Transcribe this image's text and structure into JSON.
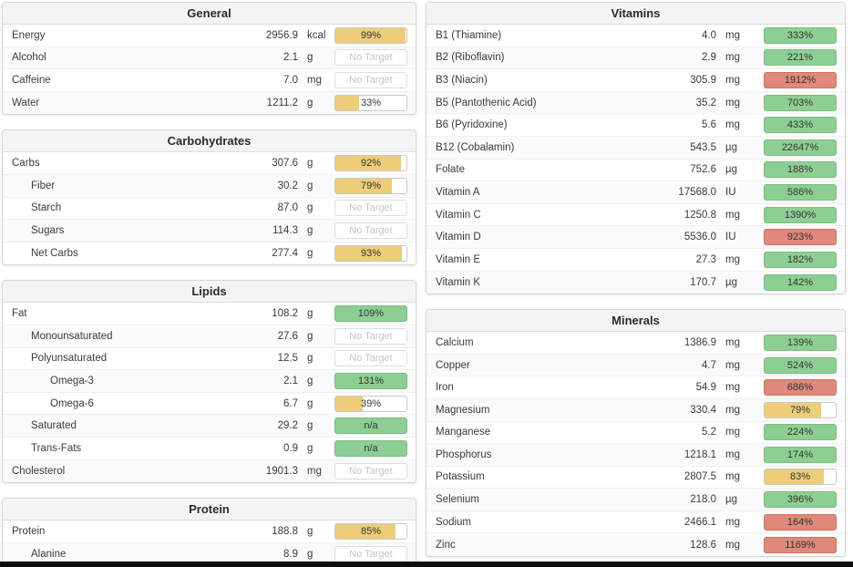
{
  "colors": {
    "amber": "#edcd78",
    "green": "#8dcf93",
    "red": "#de897b",
    "no_target_text": "#c5c5c5",
    "header_bg": "#f4f4f4"
  },
  "no_target_label": "No Target",
  "na_label": "n/a",
  "columns": {
    "left": [
      {
        "title": "General",
        "rows": [
          {
            "label": "Energy",
            "value": "2956.9",
            "unit": "kcal",
            "indent": 0,
            "bar": {
              "style": "amber",
              "text": "99%",
              "fill": 99
            }
          },
          {
            "label": "Alcohol",
            "value": "2.1",
            "unit": "g",
            "indent": 0,
            "bar": {
              "style": "none",
              "text": "No Target"
            }
          },
          {
            "label": "Caffeine",
            "value": "7.0",
            "unit": "mg",
            "indent": 0,
            "bar": {
              "style": "none",
              "text": "No Target"
            }
          },
          {
            "label": "Water",
            "value": "1211.2",
            "unit": "g",
            "indent": 0,
            "bar": {
              "style": "amber",
              "text": "33%",
              "fill": 33
            }
          }
        ]
      },
      {
        "title": "Carbohydrates",
        "rows": [
          {
            "label": "Carbs",
            "value": "307.6",
            "unit": "g",
            "indent": 0,
            "bar": {
              "style": "amber",
              "text": "92%",
              "fill": 92
            }
          },
          {
            "label": "Fiber",
            "value": "30.2",
            "unit": "g",
            "indent": 1,
            "bar": {
              "style": "amber",
              "text": "79%",
              "fill": 79
            }
          },
          {
            "label": "Starch",
            "value": "87.0",
            "unit": "g",
            "indent": 1,
            "bar": {
              "style": "none",
              "text": "No Target"
            }
          },
          {
            "label": "Sugars",
            "value": "114.3",
            "unit": "g",
            "indent": 1,
            "bar": {
              "style": "none",
              "text": "No Target"
            }
          },
          {
            "label": "Net Carbs",
            "value": "277.4",
            "unit": "g",
            "indent": 1,
            "bar": {
              "style": "amber",
              "text": "93%",
              "fill": 93
            }
          }
        ]
      },
      {
        "title": "Lipids",
        "rows": [
          {
            "label": "Fat",
            "value": "108.2",
            "unit": "g",
            "indent": 0,
            "bar": {
              "style": "green",
              "text": "109%",
              "fill": 100
            }
          },
          {
            "label": "Monounsaturated",
            "value": "27.6",
            "unit": "g",
            "indent": 1,
            "bar": {
              "style": "none",
              "text": "No Target"
            }
          },
          {
            "label": "Polyunsaturated",
            "value": "12.5",
            "unit": "g",
            "indent": 1,
            "bar": {
              "style": "none",
              "text": "No Target"
            }
          },
          {
            "label": "Omega-3",
            "value": "2.1",
            "unit": "g",
            "indent": 2,
            "bar": {
              "style": "green",
              "text": "131%",
              "fill": 100
            }
          },
          {
            "label": "Omega-6",
            "value": "6.7",
            "unit": "g",
            "indent": 2,
            "bar": {
              "style": "amber",
              "text": "39%",
              "fill": 39
            }
          },
          {
            "label": "Saturated",
            "value": "29.2",
            "unit": "g",
            "indent": 1,
            "bar": {
              "style": "green",
              "text": "n/a",
              "fill": 100
            }
          },
          {
            "label": "Trans-Fats",
            "value": "0.9",
            "unit": "g",
            "indent": 1,
            "bar": {
              "style": "green",
              "text": "n/a",
              "fill": 100
            }
          },
          {
            "label": "Cholesterol",
            "value": "1901.3",
            "unit": "mg",
            "indent": 0,
            "bar": {
              "style": "none",
              "text": "No Target"
            }
          }
        ]
      },
      {
        "title": "Protein",
        "rows": [
          {
            "label": "Protein",
            "value": "188.8",
            "unit": "g",
            "indent": 0,
            "bar": {
              "style": "amber",
              "text": "85%",
              "fill": 85
            }
          },
          {
            "label": "Alanine",
            "value": "8.9",
            "unit": "g",
            "indent": 1,
            "bar": {
              "style": "none",
              "text": "No Target"
            }
          }
        ]
      }
    ],
    "right": [
      {
        "title": "Vitamins",
        "rows": [
          {
            "label": "B1 (Thiamine)",
            "value": "4.0",
            "unit": "mg",
            "indent": 0,
            "bar": {
              "style": "green",
              "text": "333%",
              "fill": 100
            }
          },
          {
            "label": "B2 (Riboflavin)",
            "value": "2.9",
            "unit": "mg",
            "indent": 0,
            "bar": {
              "style": "green",
              "text": "221%",
              "fill": 100
            }
          },
          {
            "label": "B3 (Niacin)",
            "value": "305.9",
            "unit": "mg",
            "indent": 0,
            "bar": {
              "style": "red",
              "text": "1912%",
              "fill": 100
            }
          },
          {
            "label": "B5 (Pantothenic Acid)",
            "value": "35.2",
            "unit": "mg",
            "indent": 0,
            "bar": {
              "style": "green",
              "text": "703%",
              "fill": 100
            }
          },
          {
            "label": "B6 (Pyridoxine)",
            "value": "5.6",
            "unit": "mg",
            "indent": 0,
            "bar": {
              "style": "green",
              "text": "433%",
              "fill": 100
            }
          },
          {
            "label": "B12 (Cobalamin)",
            "value": "543.5",
            "unit": "µg",
            "indent": 0,
            "bar": {
              "style": "green",
              "text": "22647%",
              "fill": 100
            }
          },
          {
            "label": "Folate",
            "value": "752.6",
            "unit": "µg",
            "indent": 0,
            "bar": {
              "style": "green",
              "text": "188%",
              "fill": 100
            }
          },
          {
            "label": "Vitamin A",
            "value": "17568.0",
            "unit": "IU",
            "indent": 0,
            "bar": {
              "style": "green",
              "text": "586%",
              "fill": 100
            }
          },
          {
            "label": "Vitamin C",
            "value": "1250.8",
            "unit": "mg",
            "indent": 0,
            "bar": {
              "style": "green",
              "text": "1390%",
              "fill": 100
            }
          },
          {
            "label": "Vitamin D",
            "value": "5536.0",
            "unit": "IU",
            "indent": 0,
            "bar": {
              "style": "red",
              "text": "923%",
              "fill": 100
            }
          },
          {
            "label": "Vitamin E",
            "value": "27.3",
            "unit": "mg",
            "indent": 0,
            "bar": {
              "style": "green",
              "text": "182%",
              "fill": 100
            }
          },
          {
            "label": "Vitamin K",
            "value": "170.7",
            "unit": "µg",
            "indent": 0,
            "bar": {
              "style": "green",
              "text": "142%",
              "fill": 100
            }
          }
        ]
      },
      {
        "title": "Minerals",
        "rows": [
          {
            "label": "Calcium",
            "value": "1386.9",
            "unit": "mg",
            "indent": 0,
            "bar": {
              "style": "green",
              "text": "139%",
              "fill": 100
            }
          },
          {
            "label": "Copper",
            "value": "4.7",
            "unit": "mg",
            "indent": 0,
            "bar": {
              "style": "green",
              "text": "524%",
              "fill": 100
            }
          },
          {
            "label": "Iron",
            "value": "54.9",
            "unit": "mg",
            "indent": 0,
            "bar": {
              "style": "red",
              "text": "686%",
              "fill": 100
            }
          },
          {
            "label": "Magnesium",
            "value": "330.4",
            "unit": "mg",
            "indent": 0,
            "bar": {
              "style": "amber",
              "text": "79%",
              "fill": 79
            }
          },
          {
            "label": "Manganese",
            "value": "5.2",
            "unit": "mg",
            "indent": 0,
            "bar": {
              "style": "green",
              "text": "224%",
              "fill": 100
            }
          },
          {
            "label": "Phosphorus",
            "value": "1218.1",
            "unit": "mg",
            "indent": 0,
            "bar": {
              "style": "green",
              "text": "174%",
              "fill": 100
            }
          },
          {
            "label": "Potassium",
            "value": "2807.5",
            "unit": "mg",
            "indent": 0,
            "bar": {
              "style": "amber",
              "text": "83%",
              "fill": 83
            }
          },
          {
            "label": "Selenium",
            "value": "218.0",
            "unit": "µg",
            "indent": 0,
            "bar": {
              "style": "green",
              "text": "396%",
              "fill": 100
            }
          },
          {
            "label": "Sodium",
            "value": "2466.1",
            "unit": "mg",
            "indent": 0,
            "bar": {
              "style": "red",
              "text": "164%",
              "fill": 100
            }
          },
          {
            "label": "Zinc",
            "value": "128.6",
            "unit": "mg",
            "indent": 0,
            "bar": {
              "style": "red",
              "text": "1169%",
              "fill": 100
            }
          }
        ]
      }
    ]
  }
}
